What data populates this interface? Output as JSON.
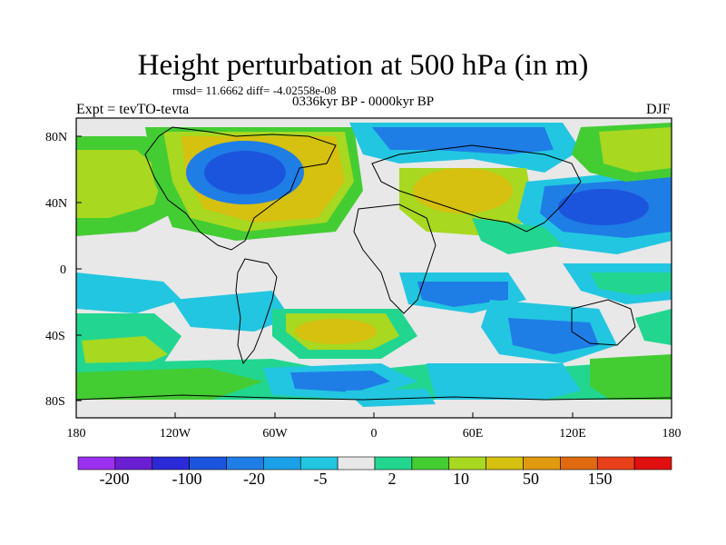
{
  "title": "Height perturbation at 500 hPa (in m)",
  "stats": "rmsd= 11.6662 diff= -4.02558e-08",
  "period": "0336kyr BP - 0000kyr BP",
  "experiment": "Expt = tevTO-tevta",
  "season": "DJF",
  "lat_ticks": [
    "80N",
    "40N",
    "0",
    "40S",
    "80S"
  ],
  "lon_ticks": [
    "180",
    "120W",
    "60W",
    "0",
    "60E",
    "120E",
    "180"
  ],
  "colorbar": {
    "colors": [
      "#9b30ee",
      "#6a1fd2",
      "#2a2ad6",
      "#1c55dd",
      "#1f7de6",
      "#1ca0e8",
      "#22c6e0",
      "#e8e8e8",
      "#22d690",
      "#44cc33",
      "#a8d820",
      "#d6c010",
      "#e09a10",
      "#e06a10",
      "#e84018",
      "#e01010"
    ],
    "labels": [
      "-200",
      "-100",
      "-20",
      "-5",
      "2",
      "10",
      "50",
      "150"
    ]
  },
  "legend_colors": {
    "land_outline": "#000000",
    "neutral": "#e8e8e8"
  }
}
